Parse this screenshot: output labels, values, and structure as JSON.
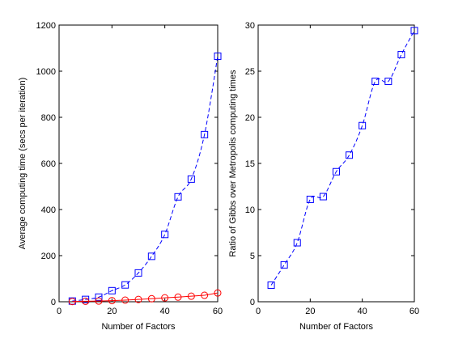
{
  "chart_data": [
    {
      "type": "line",
      "xlabel": "Number of Factors",
      "ylabel": "Average computing time (secs per iteration)",
      "xlim": [
        0,
        60
      ],
      "ylim": [
        0,
        1200
      ],
      "xticks": [
        0,
        20,
        40,
        60
      ],
      "yticks": [
        0,
        200,
        400,
        600,
        800,
        1000,
        1200
      ],
      "x": [
        5,
        10,
        15,
        20,
        25,
        30,
        35,
        40,
        45,
        50,
        55,
        60
      ],
      "series": [
        {
          "color": "#0000ff",
          "marker": "square",
          "line": "dashed",
          "values": [
            3,
            10,
            20,
            48,
            73,
            125,
            197,
            292,
            455,
            532,
            725,
            1065
          ]
        },
        {
          "color": "#ff0000",
          "marker": "circle",
          "line": "solid",
          "values": [
            1,
            2,
            3,
            5,
            7,
            10,
            13,
            17,
            20,
            24,
            28,
            38
          ]
        }
      ],
      "grid": false
    },
    {
      "type": "line",
      "xlabel": "Number of Factors",
      "ylabel": "Ratio of Gibbs over Metropolis computing times",
      "xlim": [
        0,
        60
      ],
      "ylim": [
        0,
        30
      ],
      "xticks": [
        0,
        20,
        40,
        60
      ],
      "yticks": [
        0,
        5,
        10,
        15,
        20,
        25,
        30
      ],
      "x": [
        5,
        10,
        15,
        20,
        25,
        30,
        35,
        40,
        45,
        50,
        55,
        60
      ],
      "series": [
        {
          "color": "#0000ff",
          "marker": "square",
          "line": "dashed",
          "values": [
            1.8,
            4.0,
            6.4,
            11.1,
            11.4,
            14.1,
            15.9,
            19.1,
            23.9,
            23.9,
            26.8,
            29.4
          ]
        }
      ],
      "grid": false
    }
  ]
}
